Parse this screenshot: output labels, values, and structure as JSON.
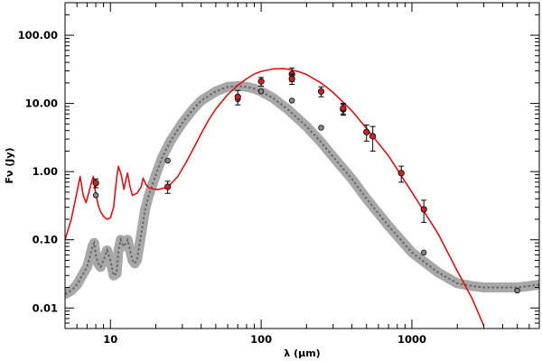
{
  "chart_data": {
    "type": "scatter",
    "title": "",
    "xlabel": "λ (μm)",
    "ylabel": "Fν (Jy)",
    "xscale": "log",
    "yscale": "log",
    "xlim": [
      5,
      7000
    ],
    "ylim": [
      0.005,
      300
    ],
    "x_tick_labels": [
      {
        "value": 10,
        "label": "10"
      },
      {
        "value": 100,
        "label": "100"
      },
      {
        "value": 1000,
        "label": "1000"
      }
    ],
    "y_tick_labels": [
      {
        "value": 0.01,
        "label": "0.01"
      },
      {
        "value": 0.1,
        "label": "0.10"
      },
      {
        "value": 1,
        "label": "1.00"
      },
      {
        "value": 10,
        "label": "10.00"
      },
      {
        "value": 100,
        "label": "100.00"
      }
    ],
    "colors": {
      "red_model": "#dd1111",
      "gray_band": "#a8a8a8",
      "gray_dotted": "#666666",
      "red_points": "#cc2222",
      "gray_points": "#888888"
    },
    "series": [
      {
        "name": "red model",
        "style": "line",
        "x": [
          5,
          5.5,
          6,
          6.3,
          6.6,
          6.9,
          7.2,
          7.5,
          7.7,
          7.9,
          8.3,
          8.6,
          9,
          9.5,
          10,
          10.5,
          11,
          11.3,
          11.8,
          12.3,
          12.7,
          13,
          13.5,
          14,
          15,
          16,
          16.5,
          17.2,
          18,
          19,
          20,
          21,
          23,
          25,
          28,
          32,
          36,
          40,
          45,
          50,
          60,
          70,
          80,
          90,
          100,
          120,
          140,
          160,
          180,
          200,
          250,
          300,
          400,
          500,
          700,
          1000,
          1500,
          2000,
          2500,
          3000
        ],
        "y": [
          0.1,
          0.2,
          0.5,
          0.85,
          0.45,
          0.35,
          0.5,
          0.7,
          0.85,
          0.55,
          0.32,
          0.26,
          0.22,
          0.2,
          0.21,
          0.3,
          0.8,
          1.2,
          0.9,
          0.55,
          0.78,
          0.95,
          0.6,
          0.45,
          0.48,
          0.6,
          0.8,
          0.65,
          0.58,
          0.56,
          0.55,
          0.55,
          0.58,
          0.65,
          0.85,
          1.4,
          2.3,
          3.6,
          5.8,
          8.3,
          13.5,
          18.5,
          23,
          27,
          29.5,
          32,
          32.5,
          31,
          29,
          26.5,
          20,
          14.5,
          7.8,
          4.3,
          1.7,
          0.5,
          0.12,
          0.035,
          0.014,
          0.0055
        ]
      },
      {
        "name": "gray band model",
        "style": "band-dotted",
        "x": [
          5,
          5.5,
          6,
          6.5,
          7,
          7.3,
          7.6,
          7.8,
          8,
          8.3,
          8.6,
          9,
          9.5,
          10,
          10.5,
          11,
          11.3,
          11.7,
          12.2,
          12.7,
          13,
          13.5,
          14,
          14.5,
          15,
          16,
          17,
          18,
          20,
          22,
          25,
          30,
          35,
          40,
          50,
          60,
          70,
          80,
          90,
          100,
          120,
          150,
          200,
          250,
          300,
          400,
          500,
          700,
          1000,
          1500,
          2000,
          2500,
          3000,
          4000,
          5000,
          6000,
          7000
        ],
        "y": [
          0.016,
          0.018,
          0.022,
          0.03,
          0.04,
          0.055,
          0.08,
          0.09,
          0.06,
          0.045,
          0.04,
          0.05,
          0.07,
          0.05,
          0.03,
          0.032,
          0.07,
          0.1,
          0.08,
          0.09,
          0.1,
          0.07,
          0.05,
          0.045,
          0.05,
          0.12,
          0.28,
          0.45,
          0.9,
          1.6,
          2.8,
          5.2,
          8,
          11,
          15,
          17.5,
          18,
          17.5,
          16.5,
          15,
          12,
          8.2,
          4.6,
          2.7,
          1.65,
          0.78,
          0.4,
          0.16,
          0.065,
          0.033,
          0.023,
          0.021,
          0.02,
          0.02,
          0.02,
          0.021,
          0.022
        ]
      },
      {
        "name": "red data points",
        "style": "points-errorbars",
        "points": [
          {
            "x": 8.0,
            "y": 0.68,
            "err": 0.1
          },
          {
            "x": 24,
            "y": 0.6,
            "err": 0.12
          },
          {
            "x": 70,
            "y": 12.5,
            "err": 3
          },
          {
            "x": 100,
            "y": 21,
            "err": 3
          },
          {
            "x": 160,
            "y": 27,
            "err": 6
          },
          {
            "x": 160,
            "y": 23,
            "err": 4
          },
          {
            "x": 250,
            "y": 15,
            "err": 2.5
          },
          {
            "x": 350,
            "y": 8.2,
            "err": 1.5
          },
          {
            "x": 350,
            "y": 8.5,
            "err": 1.5
          },
          {
            "x": 500,
            "y": 3.8,
            "err": 1
          },
          {
            "x": 550,
            "y": 3.3,
            "err": 1.3
          },
          {
            "x": 850,
            "y": 0.95,
            "err": 0.25
          },
          {
            "x": 1200,
            "y": 0.28,
            "err": 0.1
          }
        ]
      },
      {
        "name": "gray data points",
        "style": "points",
        "points": [
          {
            "x": 8.0,
            "y": 0.45
          },
          {
            "x": 24,
            "y": 1.45
          },
          {
            "x": 70,
            "y": 11.5
          },
          {
            "x": 100,
            "y": 15
          },
          {
            "x": 160,
            "y": 11
          },
          {
            "x": 250,
            "y": 4.4
          },
          {
            "x": 1200,
            "y": 0.065
          },
          {
            "x": 5000,
            "y": 0.018
          }
        ]
      }
    ]
  }
}
